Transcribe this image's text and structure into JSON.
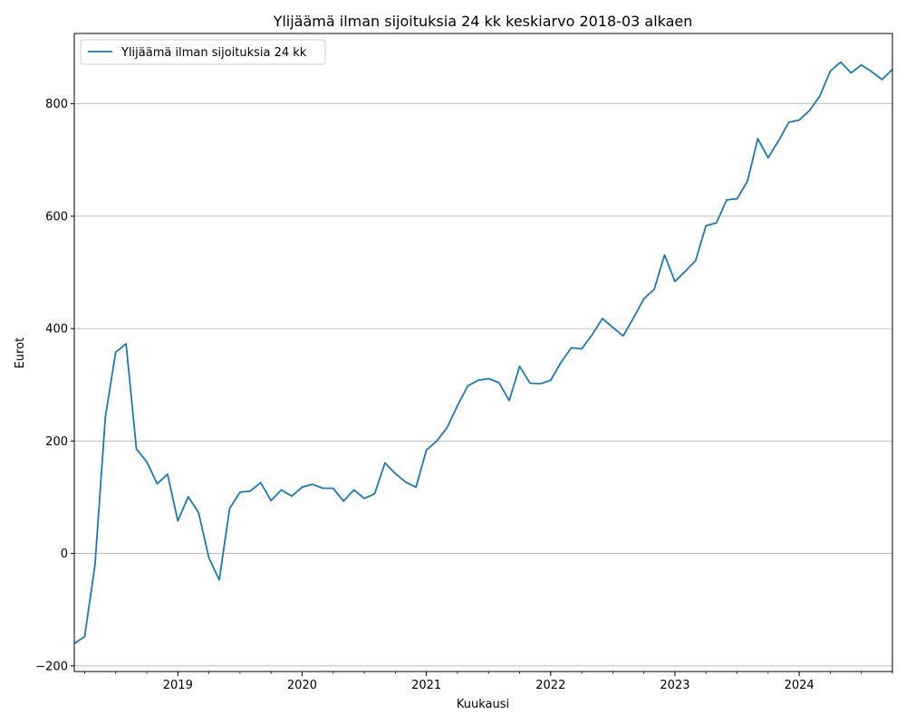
{
  "chart_data": {
    "type": "line",
    "title": "Ylijäämä ilman sijoituksia 24 kk keskiarvo 2018-03 alkaen",
    "xlabel": "Kuukausi",
    "ylabel": "Eurot",
    "xlim": [
      "2018-03",
      "2024-10"
    ],
    "ylim": [
      -210,
      925
    ],
    "x_tick_labels": [
      "2019",
      "2020",
      "2021",
      "2022",
      "2023",
      "2024"
    ],
    "x_tick_values": [
      "2019-01",
      "2020-01",
      "2021-01",
      "2022-01",
      "2023-01",
      "2024-01"
    ],
    "y_ticks": [
      -200,
      0,
      200,
      400,
      600,
      800
    ],
    "grid": "horizontal",
    "legend_position": "top-left",
    "colors": {
      "line": "#1f77b4",
      "grid": "#b0b0b0"
    },
    "series": [
      {
        "name": "Ylijäämä ilman sijoituksia 24 kk",
        "x": [
          "2018-03",
          "2018-04",
          "2018-05",
          "2018-06",
          "2018-07",
          "2018-08",
          "2018-09",
          "2018-10",
          "2018-11",
          "2018-12",
          "2019-01",
          "2019-02",
          "2019-03",
          "2019-04",
          "2019-05",
          "2019-06",
          "2019-07",
          "2019-08",
          "2019-09",
          "2019-10",
          "2019-11",
          "2019-12",
          "2020-01",
          "2020-02",
          "2020-03",
          "2020-04",
          "2020-05",
          "2020-06",
          "2020-07",
          "2020-08",
          "2020-09",
          "2020-10",
          "2020-11",
          "2020-12",
          "2021-01",
          "2021-02",
          "2021-03",
          "2021-04",
          "2021-05",
          "2021-06",
          "2021-07",
          "2021-08",
          "2021-09",
          "2021-10",
          "2021-11",
          "2021-12",
          "2022-01",
          "2022-02",
          "2022-03",
          "2022-04",
          "2022-05",
          "2022-06",
          "2022-07",
          "2022-08",
          "2022-09",
          "2022-10",
          "2022-11",
          "2022-12",
          "2023-01",
          "2023-02",
          "2023-03",
          "2023-04",
          "2023-05",
          "2023-06",
          "2023-07",
          "2023-08",
          "2023-09",
          "2023-10",
          "2023-11",
          "2023-12",
          "2024-01",
          "2024-02",
          "2024-03",
          "2024-04",
          "2024-05",
          "2024-06",
          "2024-07",
          "2024-08",
          "2024-09",
          "2024-10"
        ],
        "values": [
          -160,
          -148,
          -20,
          243,
          358,
          373,
          186,
          163,
          124,
          141,
          58,
          101,
          73,
          -8,
          -47,
          80,
          109,
          111,
          126,
          94,
          113,
          102,
          118,
          123,
          116,
          116,
          93,
          113,
          98,
          106,
          161,
          142,
          127,
          118,
          184,
          200,
          224,
          263,
          298,
          308,
          311,
          304,
          272,
          333,
          303,
          302,
          308,
          340,
          366,
          364,
          389,
          418,
          402,
          387,
          419,
          453,
          470,
          531,
          484,
          502,
          521,
          583,
          588,
          629,
          631,
          662,
          738,
          704,
          734,
          767,
          771,
          788,
          814,
          858,
          874,
          855,
          869,
          857,
          843,
          861
        ]
      }
    ]
  }
}
